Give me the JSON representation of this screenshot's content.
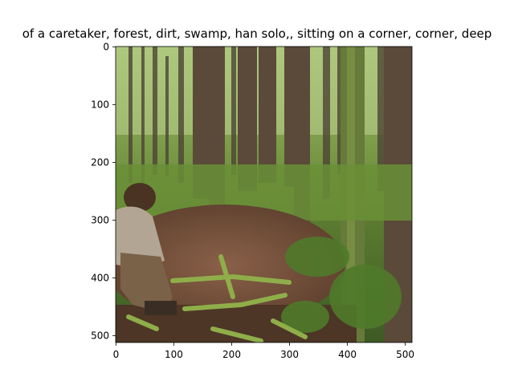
{
  "figure": {
    "title": "of a caretaker,  forest, dirt, swamp, han solo,, sitting on a corner, corner, deep",
    "x_ticks": [
      "0",
      "100",
      "200",
      "300",
      "400",
      "500"
    ],
    "y_ticks": [
      "0",
      "100",
      "200",
      "300",
      "400",
      "500"
    ],
    "x_range": [
      0,
      512
    ],
    "y_range": [
      0,
      512
    ]
  },
  "image": {
    "description": "swamp forest with tall mossy trees, dirt clearing, man in brown jacket crouching at left edge"
  },
  "colors": {
    "foliage": "#6f8f3e",
    "dark_foliage": "#3d5a24",
    "trunk": "#5b4a3a",
    "dirt": "#6b4a34",
    "moss": "#8fae4a"
  }
}
